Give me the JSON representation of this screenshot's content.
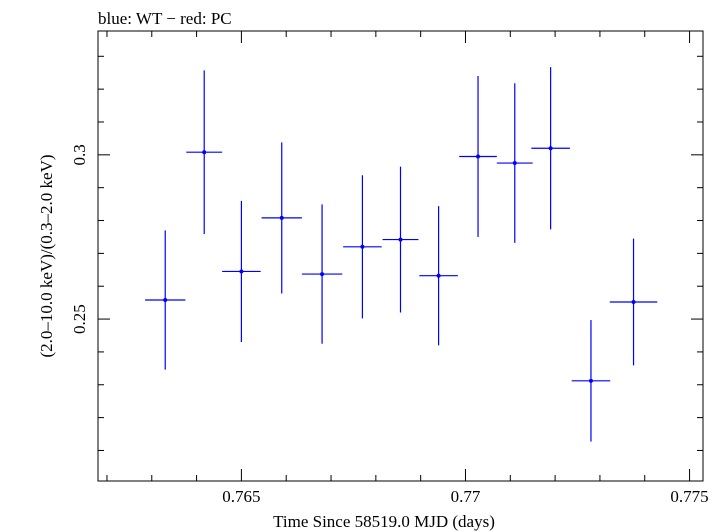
{
  "chart_data": {
    "type": "scatter",
    "title": "blue: WT − red: PC",
    "xlabel": "Time Since 58519.0 MJD (days)",
    "ylabel": "(2.0–10.0 keV)/(0.3–2.0 keV)",
    "xlim": [
      0.7618,
      0.7753
    ],
    "ylim": [
      0.2007,
      0.3377
    ],
    "x_ticks": [
      {
        "value": 0.765,
        "label": "0.765"
      },
      {
        "value": 0.77,
        "label": "0.77"
      },
      {
        "value": 0.775,
        "label": "0.775"
      }
    ],
    "y_ticks": [
      {
        "value": 0.25,
        "label": "0.25"
      },
      {
        "value": 0.3,
        "label": "0.3"
      }
    ],
    "series": [
      {
        "name": "WT",
        "color": "#0000ff",
        "points": [
          {
            "x": 0.7633,
            "xerr": 0.00045,
            "y": 0.2558,
            "yerr": 0.0212
          },
          {
            "x": 0.76417,
            "xerr": 0.0004,
            "y": 0.3008,
            "yerr": 0.0249
          },
          {
            "x": 0.765,
            "xerr": 0.00043,
            "y": 0.2645,
            "yerr": 0.0215
          },
          {
            "x": 0.7659,
            "xerr": 0.00045,
            "y": 0.2808,
            "yerr": 0.023
          },
          {
            "x": 0.7668,
            "xerr": 0.00045,
            "y": 0.2637,
            "yerr": 0.0212
          },
          {
            "x": 0.7677,
            "xerr": 0.00043,
            "y": 0.272,
            "yerr": 0.0218
          },
          {
            "x": 0.76855,
            "xerr": 0.0004,
            "y": 0.2742,
            "yerr": 0.0222
          },
          {
            "x": 0.7694,
            "xerr": 0.00043,
            "y": 0.2632,
            "yerr": 0.0212
          },
          {
            "x": 0.77028,
            "xerr": 0.00042,
            "y": 0.2995,
            "yerr": 0.0245
          },
          {
            "x": 0.7711,
            "xerr": 0.0004,
            "y": 0.2975,
            "yerr": 0.0243
          },
          {
            "x": 0.7719,
            "xerr": 0.00043,
            "y": 0.302,
            "yerr": 0.0247
          },
          {
            "x": 0.7728,
            "xerr": 0.00043,
            "y": 0.2312,
            "yerr": 0.0185
          },
          {
            "x": 0.77375,
            "xerr": 0.00053,
            "y": 0.2552,
            "yerr": 0.0193
          }
        ]
      }
    ]
  }
}
